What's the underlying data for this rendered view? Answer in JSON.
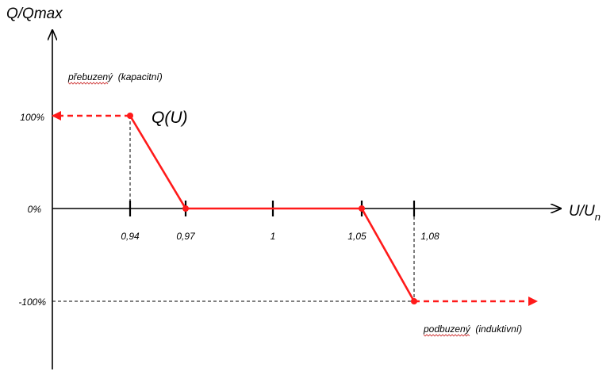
{
  "colors": {
    "curve": "#ff1a1a",
    "axis": "#000000",
    "background": "#ffffff"
  },
  "chart_data": {
    "type": "line",
    "y_axis_title": "Q/Qmax",
    "x_axis_title_main": "U/U",
    "x_axis_title_sub": "n",
    "curve_label": "Q(U)",
    "upper_region_label": "přebuzený  (kapacitní)",
    "lower_region_label": "podbuzený  (induktivní)",
    "x_ticks": [
      {
        "label": "0,94",
        "value": 0.94
      },
      {
        "label": "0,97",
        "value": 0.97
      },
      {
        "label": "1",
        "value": 1.0
      },
      {
        "label": "1,05",
        "value": 1.05
      },
      {
        "label": "1,08",
        "value": 1.08
      }
    ],
    "y_ticks": [
      {
        "label": "100%",
        "value": 100
      },
      {
        "label": "0%",
        "value": 0
      },
      {
        "label": "-100%",
        "value": -100
      }
    ],
    "series": [
      {
        "x": [
          0.94,
          0.97,
          1.0,
          1.05,
          1.08
        ],
        "y": [
          100,
          0,
          0,
          0,
          -100
        ]
      }
    ],
    "ylim": [
      -170,
      190
    ]
  }
}
